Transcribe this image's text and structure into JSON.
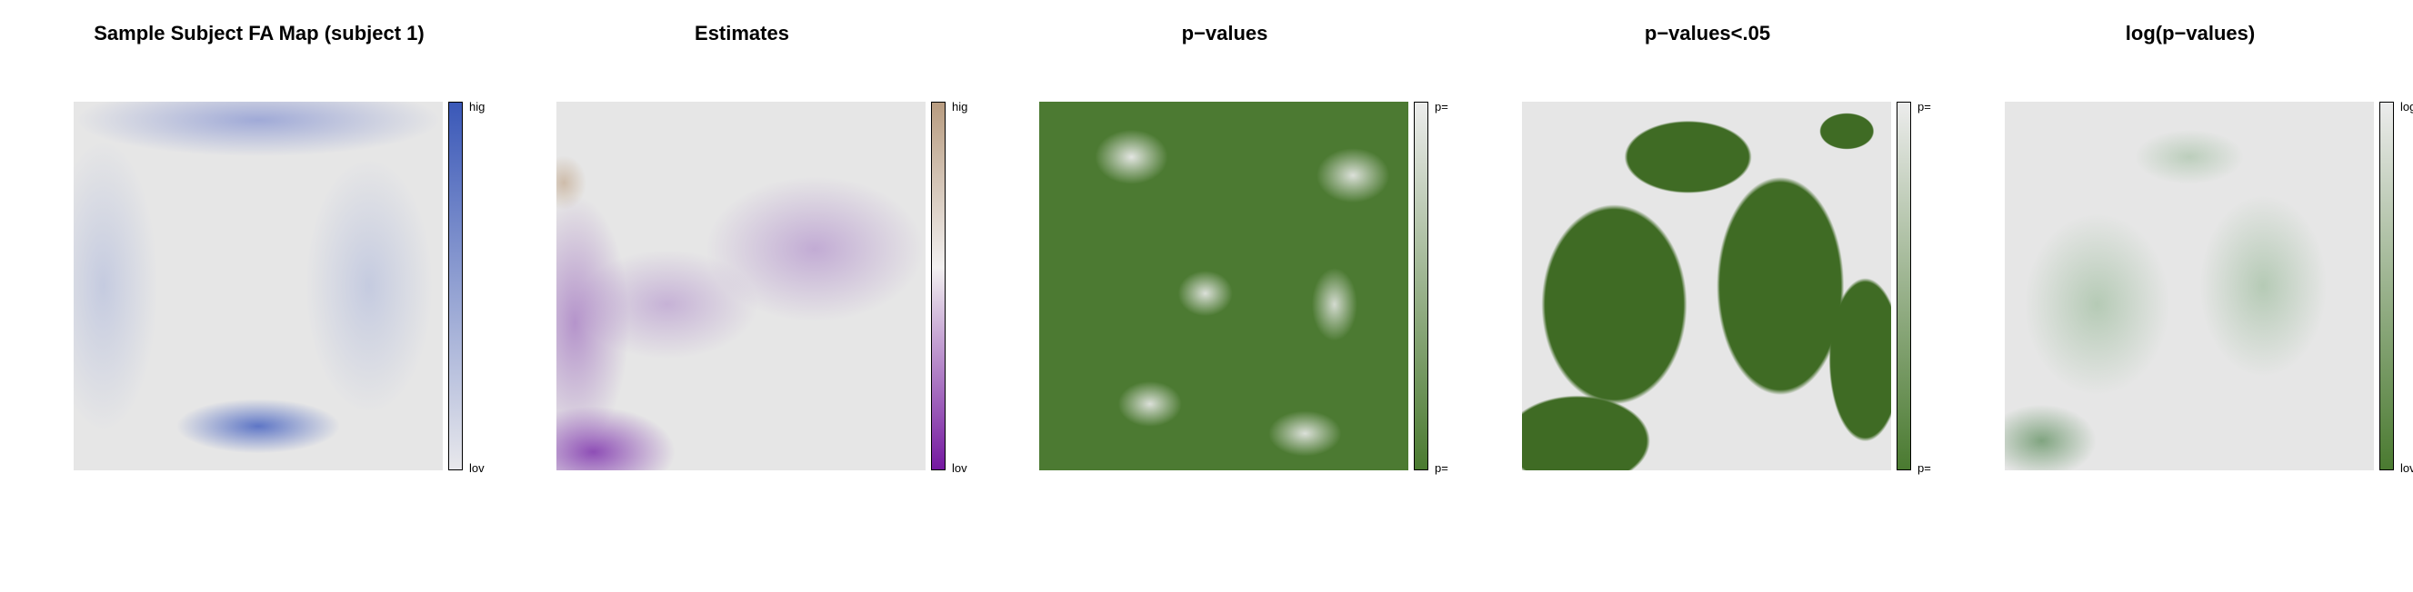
{
  "panels": [
    {
      "title": "Sample Subject FA Map (subject 1)",
      "top_label": "hig",
      "bottom_label": "lov"
    },
    {
      "title": "Estimates",
      "top_label": "hig",
      "bottom_label": "lov"
    },
    {
      "title": "p−values",
      "top_label": "p=",
      "bottom_label": "p="
    },
    {
      "title": "p−values<.05",
      "top_label": "p=",
      "bottom_label": "p="
    },
    {
      "title": "log(p−values)",
      "top_label": "log",
      "bottom_label": "lov"
    }
  ]
}
